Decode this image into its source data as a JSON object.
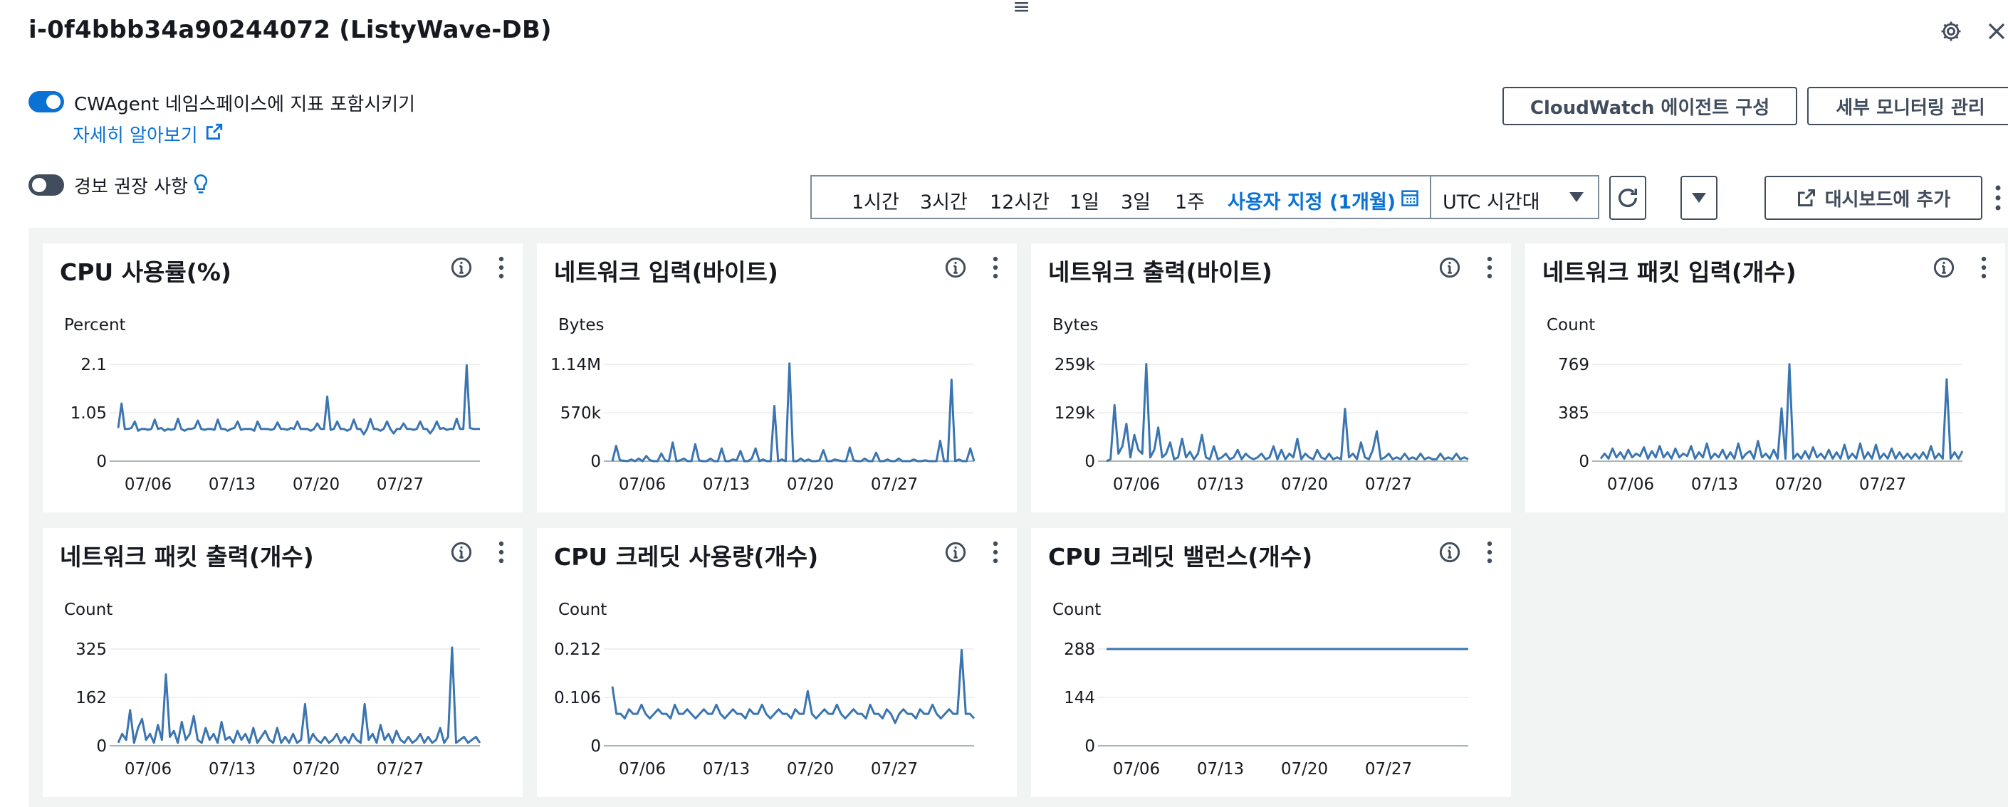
{
  "header": {
    "title": "i-0f4bbb34a90244072 (ListyWave-DB)",
    "drag_handle": "≡"
  },
  "controls": {
    "cwagent_toggle": {
      "label": "CWAgent 네임스페이스에 지표 포함시키기",
      "on": true
    },
    "learn_more": "자세히 알아보기",
    "alarm_toggle": {
      "label": "경보 권장 사항",
      "on": false
    },
    "cloudwatch_agent_button": "CloudWatch 에이전트 구성",
    "detailed_monitoring_button": "세부 모니터링 관리",
    "add_dashboard_button": "대시보드에 추가"
  },
  "time_range": {
    "options": [
      "1시간",
      "3시간",
      "12시간",
      "1일",
      "3일",
      "1주"
    ],
    "custom": "사용자 지정 (1개월)",
    "timezone": "UTC 시간대"
  },
  "colors": {
    "accent": "#0972d3",
    "series": "#3a75b0"
  },
  "chart_data": [
    {
      "type": "line",
      "title": "CPU 사용률(%)",
      "ylabel": "Percent",
      "ytick_labels": [
        "2.1",
        "1.05",
        "0"
      ],
      "ylim": [
        0,
        2.1
      ],
      "xtick_labels": [
        "07/06",
        "07/13",
        "07/20",
        "07/27"
      ],
      "series": [
        {
          "values": [
            0.72,
            1.25,
            0.7,
            0.7,
            0.72,
            0.86,
            0.66,
            0.7,
            0.7,
            0.68,
            0.7,
            0.9,
            0.7,
            0.72,
            0.66,
            0.7,
            0.68,
            0.7,
            0.92,
            0.7,
            0.66,
            0.7,
            0.7,
            0.72,
            0.88,
            0.7,
            0.68,
            0.7,
            0.7,
            0.68,
            0.9,
            0.7,
            0.7,
            0.66,
            0.7,
            0.72,
            0.86,
            0.68,
            0.7,
            0.7,
            0.7,
            0.66,
            0.86,
            0.7,
            0.7,
            0.7,
            0.68,
            0.7,
            0.84,
            0.7,
            0.7,
            0.68,
            0.72,
            0.7,
            0.86,
            0.7,
            0.7,
            0.7,
            0.66,
            0.7,
            0.82,
            0.7,
            0.7,
            1.4,
            0.68,
            0.7,
            0.86,
            0.7,
            0.7,
            0.66,
            0.7,
            0.9,
            0.7,
            0.7,
            0.58,
            0.7,
            0.92,
            0.7,
            0.7,
            0.66,
            0.7,
            0.86,
            0.7,
            0.6,
            0.7,
            0.7,
            0.82,
            0.7,
            0.7,
            0.68,
            0.7,
            0.86,
            0.7,
            0.7,
            0.6,
            0.7,
            0.86,
            0.7,
            0.72,
            0.68,
            0.7,
            0.7,
            0.92,
            0.7,
            0.7,
            2.08,
            0.72,
            0.7,
            0.7,
            0.7
          ]
        }
      ]
    },
    {
      "type": "line",
      "title": "네트워크 입력(바이트)",
      "ylabel": "Bytes",
      "ytick_labels": [
        "1.14M",
        "570k",
        "0"
      ],
      "ylim": [
        0,
        1140000
      ],
      "xtick_labels": [
        "07/06",
        "07/13",
        "07/20",
        "07/27"
      ],
      "series": [
        {
          "values": [
            0,
            180000,
            10000,
            5000,
            0,
            20000,
            0,
            30000,
            0,
            60000,
            10000,
            0,
            0,
            90000,
            10000,
            0,
            220000,
            0,
            10000,
            30000,
            0,
            0,
            200000,
            10000,
            0,
            0,
            30000,
            0,
            0,
            150000,
            0,
            0,
            20000,
            10000,
            120000,
            0,
            0,
            30000,
            150000,
            0,
            20000,
            0,
            0,
            650000,
            0,
            20000,
            0,
            1150000,
            0,
            0,
            30000,
            0,
            20000,
            0,
            0,
            10000,
            130000,
            0,
            0,
            20000,
            10000,
            0,
            0,
            160000,
            10000,
            0,
            0,
            30000,
            0,
            0,
            100000,
            0,
            0,
            20000,
            0,
            0,
            30000,
            0,
            0,
            0,
            20000,
            0,
            0,
            10000,
            0,
            0,
            0,
            240000,
            0,
            0,
            960000,
            0,
            20000,
            0,
            0,
            150000,
            0
          ]
        }
      ]
    },
    {
      "type": "line",
      "title": "네트워크 출력(바이트)",
      "ylabel": "Bytes",
      "ytick_labels": [
        "259k",
        "129k",
        "0"
      ],
      "ylim": [
        0,
        259000
      ],
      "xtick_labels": [
        "07/06",
        "07/13",
        "07/20",
        "07/27"
      ],
      "series": [
        {
          "values": [
            0,
            5000,
            150000,
            20000,
            40000,
            100000,
            10000,
            70000,
            30000,
            20000,
            260000,
            10000,
            30000,
            90000,
            10000,
            20000,
            50000,
            5000,
            10000,
            60000,
            10000,
            25000,
            5000,
            20000,
            70000,
            10000,
            5000,
            40000,
            5000,
            10000,
            20000,
            5000,
            10000,
            30000,
            5000,
            20000,
            10000,
            5000,
            10000,
            20000,
            5000,
            10000,
            40000,
            5000,
            30000,
            5000,
            20000,
            10000,
            60000,
            5000,
            20000,
            10000,
            5000,
            30000,
            10000,
            5000,
            20000,
            5000,
            10000,
            5000,
            140000,
            10000,
            20000,
            5000,
            50000,
            10000,
            5000,
            30000,
            80000,
            5000,
            10000,
            20000,
            5000,
            10000,
            5000,
            20000,
            5000,
            10000,
            5000,
            20000,
            5000,
            10000,
            5000,
            5000,
            20000,
            5000,
            10000,
            5000,
            20000,
            5000,
            10000,
            5000
          ]
        }
      ]
    },
    {
      "type": "line",
      "title": "네트워크 패킷 입력(개수)",
      "ylabel": "Count",
      "ytick_labels": [
        "769",
        "385",
        "0"
      ],
      "ylim": [
        0,
        769
      ],
      "xtick_labels": [
        "07/06",
        "07/13",
        "07/20",
        "07/27"
      ],
      "series": [
        {
          "values": [
            20,
            60,
            20,
            100,
            30,
            70,
            20,
            90,
            30,
            60,
            40,
            110,
            20,
            80,
            30,
            120,
            30,
            70,
            20,
            100,
            30,
            60,
            40,
            120,
            20,
            70,
            30,
            140,
            20,
            60,
            30,
            90,
            20,
            70,
            20,
            140,
            20,
            60,
            80,
            20,
            160,
            30,
            60,
            20,
            90,
            20,
            420,
            20,
            770,
            20,
            60,
            20,
            80,
            20,
            110,
            30,
            60,
            20,
            90,
            20,
            70,
            20,
            130,
            20,
            60,
            20,
            140,
            20,
            70,
            20,
            130,
            20,
            60,
            20,
            100,
            20,
            70,
            20,
            60,
            20,
            60,
            20,
            70,
            20,
            120,
            20,
            60,
            20,
            650,
            20,
            70,
            20,
            80
          ]
        }
      ]
    },
    {
      "type": "line",
      "title": "네트워크 패킷 출력(개수)",
      "ylabel": "Count",
      "ytick_labels": [
        "325",
        "162",
        "0"
      ],
      "ylim": [
        0,
        325
      ],
      "xtick_labels": [
        "07/06",
        "07/13",
        "07/20",
        "07/27"
      ],
      "series": [
        {
          "values": [
            10,
            40,
            20,
            120,
            10,
            60,
            90,
            20,
            40,
            10,
            70,
            20,
            240,
            30,
            50,
            10,
            80,
            20,
            40,
            100,
            20,
            10,
            60,
            20,
            40,
            10,
            80,
            20,
            30,
            10,
            50,
            20,
            40,
            10,
            60,
            10,
            30,
            50,
            20,
            10,
            60,
            10,
            30,
            10,
            40,
            10,
            20,
            140,
            10,
            40,
            20,
            10,
            30,
            10,
            20,
            40,
            10,
            30,
            10,
            40,
            20,
            10,
            140,
            20,
            40,
            10,
            70,
            20,
            40,
            10,
            50,
            20,
            10,
            30,
            10,
            20,
            40,
            10,
            30,
            10,
            20,
            60,
            10,
            30,
            330,
            10,
            20,
            30,
            10,
            20,
            30,
            10
          ]
        }
      ]
    },
    {
      "type": "line",
      "title": "CPU 크레딧 사용량(개수)",
      "ylabel": "Count",
      "ytick_labels": [
        "0.212",
        "0.106",
        "0"
      ],
      "ylim": [
        0,
        0.212
      ],
      "xtick_labels": [
        "07/06",
        "07/13",
        "07/20",
        "07/27"
      ],
      "series": [
        {
          "values": [
            0.13,
            0.07,
            0.07,
            0.06,
            0.08,
            0.07,
            0.07,
            0.09,
            0.07,
            0.06,
            0.07,
            0.08,
            0.07,
            0.07,
            0.06,
            0.09,
            0.07,
            0.07,
            0.08,
            0.07,
            0.06,
            0.07,
            0.08,
            0.07,
            0.07,
            0.09,
            0.07,
            0.06,
            0.07,
            0.08,
            0.07,
            0.07,
            0.06,
            0.08,
            0.07,
            0.07,
            0.09,
            0.07,
            0.06,
            0.07,
            0.08,
            0.07,
            0.07,
            0.06,
            0.08,
            0.07,
            0.07,
            0.12,
            0.07,
            0.06,
            0.07,
            0.08,
            0.07,
            0.07,
            0.09,
            0.07,
            0.06,
            0.07,
            0.08,
            0.07,
            0.07,
            0.06,
            0.09,
            0.07,
            0.07,
            0.06,
            0.08,
            0.07,
            0.05,
            0.07,
            0.08,
            0.07,
            0.07,
            0.06,
            0.08,
            0.07,
            0.07,
            0.09,
            0.07,
            0.06,
            0.07,
            0.08,
            0.07,
            0.07,
            0.21,
            0.07,
            0.07,
            0.06
          ]
        }
      ]
    },
    {
      "type": "line",
      "title": "CPU 크레딧 밸런스(개수)",
      "ylabel": "Count",
      "ytick_labels": [
        "288",
        "144",
        "0"
      ],
      "ylim": [
        0,
        288
      ],
      "xtick_labels": [
        "07/06",
        "07/13",
        "07/20",
        "07/27"
      ],
      "series": [
        {
          "values": [
            288,
            288,
            288,
            288,
            288,
            288,
            288,
            288,
            288,
            288
          ]
        }
      ]
    }
  ]
}
